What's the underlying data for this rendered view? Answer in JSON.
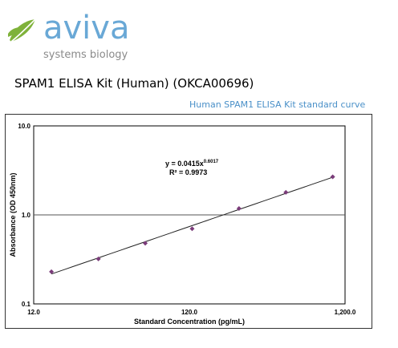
{
  "brand": {
    "name": "aviva",
    "tagline": "systems biology",
    "colors": {
      "wordmark": "#69a8d6",
      "leaf": "#7fb23a",
      "tagline": "#8a8a8a"
    },
    "logo_icon": "leaf-logo-icon"
  },
  "product": {
    "title": "SPAM1 ELISA Kit (Human) (OKCA00696)"
  },
  "caption": "Human SPAM1 ELISA Kit standard curve",
  "chart_data": {
    "type": "scatter",
    "xscale": "log",
    "yscale": "log",
    "xlabel": "Standard Concentration (pg/mL)",
    "ylabel": "Absorbance (OD 450nm)",
    "xlim": [
      12,
      1200
    ],
    "ylim": [
      0.1,
      10
    ],
    "xticks": [
      "12.0",
      "120.0",
      "1,200.0"
    ],
    "yticks": [
      "0.1",
      "1.0",
      "10.0"
    ],
    "reference_line_y": 1.0,
    "equation": "y = 0.0415x",
    "equation_exponent": "0.6017",
    "r_squared": "R² = 0.9973",
    "fit": {
      "a": 0.0415,
      "b": 0.6017
    },
    "series": [
      {
        "x": [
          15.6,
          31.25,
          62.5,
          125,
          250,
          500,
          1000
        ],
        "y": [
          0.23,
          0.32,
          0.48,
          0.7,
          1.18,
          1.79,
          2.68
        ]
      }
    ],
    "marker_color": "#7b3c7a",
    "line_color": "#222222"
  }
}
